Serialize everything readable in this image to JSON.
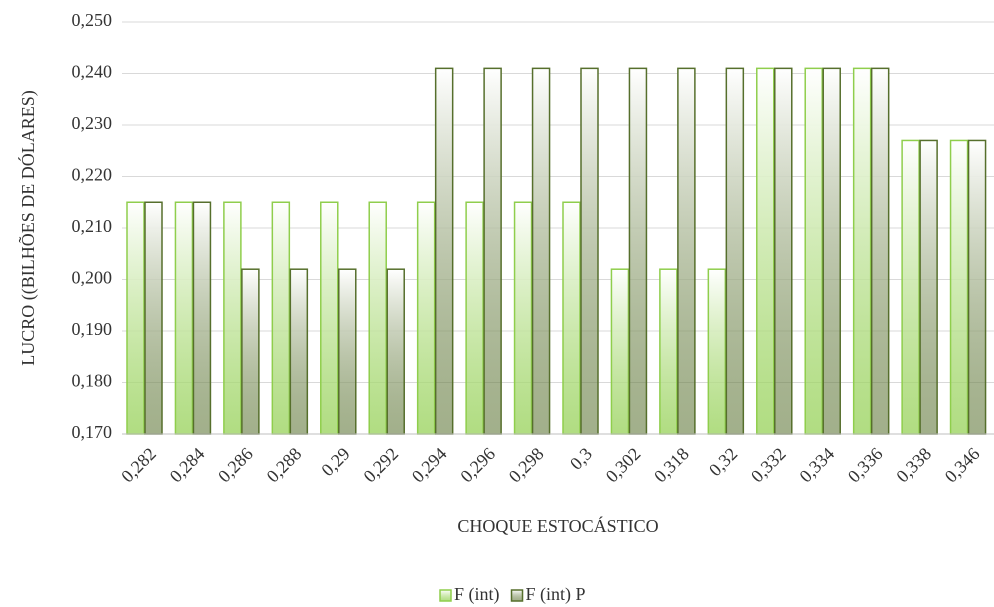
{
  "chart_data": {
    "type": "bar",
    "y_label": "LUCRO ((BILHÕES DE DÓLARES)",
    "x_label": "CHOQUE ESTOCÁSTICO",
    "categories": [
      "0,282",
      "0,284",
      "0,286",
      "0,288",
      "0,29",
      "0,292",
      "0,294",
      "0,296",
      "0,298",
      "0,3",
      "0,302",
      "0,318",
      "0,32",
      "0,332",
      "0,334",
      "0,336",
      "0,338",
      "0,346"
    ],
    "series": [
      {
        "name": "F (int)",
        "color": "#8fce4c",
        "values": [
          0.215,
          0.215,
          0.215,
          0.215,
          0.215,
          0.215,
          0.215,
          0.215,
          0.215,
          0.215,
          0.202,
          0.202,
          0.202,
          0.241,
          0.241,
          0.241,
          0.227,
          0.227
        ]
      },
      {
        "name": "F (int) P",
        "color": "#566f2c",
        "values": [
          0.215,
          0.215,
          0.202,
          0.202,
          0.202,
          0.202,
          0.241,
          0.241,
          0.241,
          0.241,
          0.241,
          0.241,
          0.241,
          0.241,
          0.241,
          0.241,
          0.227,
          0.227
        ]
      }
    ],
    "ylim": [
      0.17,
      0.25
    ],
    "yticks": [
      {
        "value": 0.17,
        "label": "0,170"
      },
      {
        "value": 0.18,
        "label": "0,180"
      },
      {
        "value": 0.19,
        "label": "0,190"
      },
      {
        "value": 0.2,
        "label": "0,200"
      },
      {
        "value": 0.21,
        "label": "0,210"
      },
      {
        "value": 0.22,
        "label": "0,220"
      },
      {
        "value": 0.23,
        "label": "0,230"
      },
      {
        "value": 0.24,
        "label": "0,240"
      },
      {
        "value": 0.25,
        "label": "0,250"
      }
    ],
    "grid": true,
    "legend": "bottom"
  }
}
